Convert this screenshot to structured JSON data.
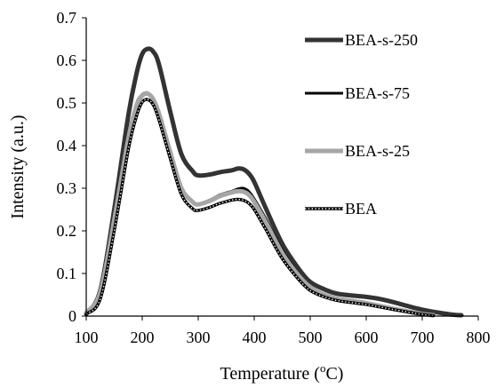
{
  "chart_data": {
    "type": "line",
    "xlabel": "Temperature (",
    "xlabel_sup": "o",
    "xlabel_tail": "C)",
    "ylabel": "Intensity (a.u.)",
    "xlim": [
      100,
      800
    ],
    "ylim": [
      0,
      0.7
    ],
    "x_ticks": [
      100,
      200,
      300,
      400,
      500,
      600,
      700,
      800
    ],
    "x_tick_labels": [
      "100",
      "200",
      "300",
      "400",
      "500",
      "600",
      "700",
      "800"
    ],
    "y_ticks": [
      0,
      0.1,
      0.2,
      0.3,
      0.4,
      0.5,
      0.6,
      0.7
    ],
    "y_tick_labels": [
      "0",
      "0.1",
      "0.2",
      "0.3",
      "0.4",
      "0.5",
      "0.6",
      "0.7"
    ],
    "grid": false,
    "legend_position": "right",
    "series": [
      {
        "name": "BEA-s-250",
        "color": "#333333",
        "style": "thick",
        "x": [
          100,
          125,
          150,
          175,
          190,
          200,
          210,
          220,
          230,
          250,
          270,
          290,
          300,
          320,
          340,
          360,
          370,
          380,
          390,
          400,
          420,
          450,
          480,
          500,
          525,
          550,
          600,
          625,
          650,
          700,
          750,
          770
        ],
        "y": [
          0.005,
          0.06,
          0.25,
          0.47,
          0.57,
          0.615,
          0.627,
          0.62,
          0.59,
          0.48,
          0.38,
          0.34,
          0.33,
          0.332,
          0.338,
          0.342,
          0.346,
          0.345,
          0.335,
          0.315,
          0.255,
          0.17,
          0.11,
          0.08,
          0.063,
          0.052,
          0.045,
          0.04,
          0.032,
          0.015,
          0.004,
          0.002
        ]
      },
      {
        "name": "BEA-s-75",
        "color": "#000000",
        "style": "medium",
        "x": [
          100,
          125,
          150,
          175,
          190,
          200,
          210,
          220,
          230,
          250,
          270,
          290,
          300,
          320,
          340,
          360,
          370,
          380,
          390,
          400,
          420,
          450,
          480,
          500,
          525,
          550,
          600,
          650,
          700,
          720
        ],
        "y": [
          0.005,
          0.05,
          0.22,
          0.41,
          0.49,
          0.515,
          0.52,
          0.505,
          0.47,
          0.38,
          0.3,
          0.268,
          0.262,
          0.272,
          0.285,
          0.293,
          0.298,
          0.3,
          0.293,
          0.275,
          0.23,
          0.155,
          0.098,
          0.07,
          0.052,
          0.042,
          0.032,
          0.018,
          0.005,
          0.002
        ]
      },
      {
        "name": "BEA-s-25",
        "color": "#a6a6a6",
        "style": "thick",
        "x": [
          100,
          125,
          150,
          175,
          190,
          200,
          210,
          220,
          230,
          250,
          270,
          290,
          300,
          320,
          340,
          360,
          370,
          380,
          390,
          400,
          420,
          450,
          480,
          500,
          525,
          550,
          600,
          650,
          700,
          720
        ],
        "y": [
          0.008,
          0.055,
          0.225,
          0.415,
          0.495,
          0.518,
          0.522,
          0.508,
          0.475,
          0.385,
          0.3,
          0.268,
          0.262,
          0.27,
          0.282,
          0.29,
          0.293,
          0.292,
          0.285,
          0.268,
          0.222,
          0.148,
          0.094,
          0.068,
          0.05,
          0.04,
          0.03,
          0.017,
          0.005,
          0.002
        ]
      },
      {
        "name": "BEA",
        "color": "#000000",
        "style": "dotted",
        "x": [
          100,
          125,
          150,
          175,
          190,
          200,
          210,
          220,
          230,
          250,
          270,
          290,
          300,
          320,
          340,
          360,
          370,
          380,
          390,
          400,
          420,
          450,
          480,
          500,
          525,
          550,
          600,
          650,
          700,
          720
        ],
        "y": [
          0.005,
          0.04,
          0.2,
          0.39,
          0.47,
          0.502,
          0.508,
          0.495,
          0.46,
          0.37,
          0.285,
          0.252,
          0.248,
          0.255,
          0.265,
          0.272,
          0.274,
          0.272,
          0.265,
          0.25,
          0.205,
          0.135,
          0.085,
          0.06,
          0.045,
          0.036,
          0.027,
          0.015,
          0.004,
          0.001
        ]
      }
    ]
  }
}
